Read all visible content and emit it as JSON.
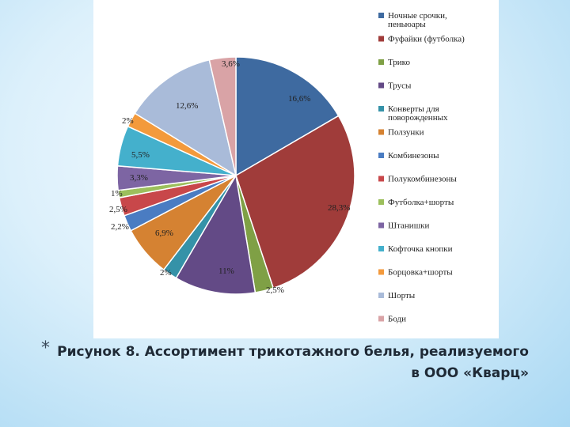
{
  "caption": {
    "bullet": "*",
    "text": "Рисунок 8. Ассортимент трикотажного белья, реализуемого в ООО «Кварц»"
  },
  "chart_data": {
    "type": "pie",
    "title": "",
    "legend_position": "right",
    "slices": [
      {
        "name": "Ночные срочки, пеньюары",
        "value": 16.6,
        "label": "16,6%",
        "color": "#3e6aa0"
      },
      {
        "name": "Фуфайки (футболка)",
        "value": 28.3,
        "label": "28,3%",
        "color": "#a03c3a"
      },
      {
        "name": "Трико",
        "value": 2.5,
        "label": "2,5%",
        "color": "#7fa045"
      },
      {
        "name": "Трусы",
        "value": 11,
        "label": "11%",
        "color": "#634a86"
      },
      {
        "name": "Конверты для поворожденных",
        "value": 2,
        "label": "2%",
        "color": "#3592a8"
      },
      {
        "name": "Ползунки",
        "value": 6.9,
        "label": "6,9%",
        "color": "#d58232"
      },
      {
        "name": "Комбинезоны",
        "value": 2.2,
        "label": "2,2%",
        "color": "#4a7cc2"
      },
      {
        "name": "Полукомбинезоны",
        "value": 2.5,
        "label": "2,5%",
        "color": "#c8474a"
      },
      {
        "name": "Футболка+шорты",
        "value": 1,
        "label": "1%",
        "color": "#9cbf5c"
      },
      {
        "name": "Штанишки",
        "value": 3.3,
        "label": "3,3%",
        "color": "#7d65a3"
      },
      {
        "name": "Кофточка кнопки",
        "value": 5.5,
        "label": "5,5%",
        "color": "#44b0cc"
      },
      {
        "name": "Борцовка+шорты",
        "value": 2,
        "label": "2%",
        "color": "#f39a3c"
      },
      {
        "name": "Шорты",
        "value": 12.6,
        "label": "12,6%",
        "color": "#a9bbd9"
      },
      {
        "name": "Боди",
        "value": 3.6,
        "label": "3,6%",
        "color": "#d9a3a6"
      }
    ]
  }
}
